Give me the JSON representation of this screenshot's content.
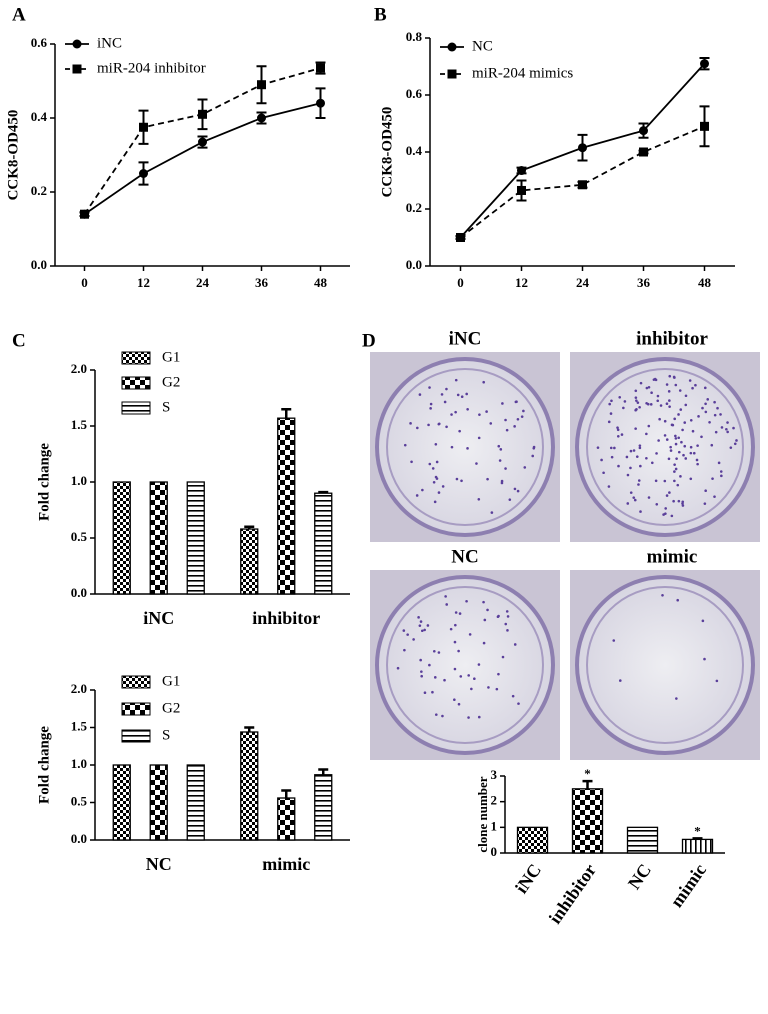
{
  "chart_data": [
    {
      "type": "line",
      "panel_label": "A",
      "y_label": "CCK8-OD450",
      "x": [
        0,
        12,
        24,
        36,
        48
      ],
      "xlim": [
        -6,
        54
      ],
      "xticks": [
        0,
        12,
        24,
        36,
        48
      ],
      "ylim": [
        0,
        0.6
      ],
      "yticks": [
        {
          "value": 0,
          "label": "0.0"
        },
        0.2,
        0.4,
        0.6
      ],
      "legend": "upper left",
      "series": [
        {
          "name": "iNC",
          "color": "#000000",
          "marker": "circle",
          "dashed": false,
          "values": [
            0.14,
            0.25,
            0.335,
            0.4,
            0.44
          ],
          "errors": [
            0.005,
            0.03,
            0.015,
            0.015,
            0.04
          ]
        },
        {
          "name": "miR-204 inhibitor",
          "color": "#000000",
          "marker": "square",
          "dashed": true,
          "values": [
            0.14,
            0.375,
            0.41,
            0.49,
            0.535
          ],
          "errors": [
            0.005,
            0.045,
            0.04,
            0.05,
            0.015
          ]
        }
      ]
    },
    {
      "type": "line",
      "panel_label": "B",
      "y_label": "CCK8-OD450",
      "x": [
        0,
        12,
        24,
        36,
        48
      ],
      "xlim": [
        -6,
        54
      ],
      "xticks": [
        0,
        12,
        24,
        36,
        48
      ],
      "ylim": [
        0,
        0.8
      ],
      "yticks": [
        {
          "value": 0,
          "label": "0.0"
        },
        0.2,
        0.4,
        0.6,
        0.8
      ],
      "legend": "upper left",
      "series": [
        {
          "name": "NC",
          "color": "#000000",
          "marker": "circle",
          "dashed": false,
          "values": [
            0.1,
            0.335,
            0.415,
            0.475,
            0.71
          ],
          "errors": [
            0.005,
            0.01,
            0.045,
            0.025,
            0.02
          ]
        },
        {
          "name": "miR-204 mimics",
          "color": "#000000",
          "marker": "square",
          "dashed": true,
          "values": [
            0.1,
            0.265,
            0.285,
            0.4,
            0.49
          ],
          "errors": [
            0.005,
            0.035,
            0.01,
            0.005,
            0.07
          ]
        }
      ]
    },
    {
      "type": "bar",
      "panel_label": "C",
      "y_label": "Fold change",
      "categories": [
        "iNC",
        "inhibitor"
      ],
      "ylim": [
        0,
        2.0
      ],
      "yticks": [
        {
          "value": 0,
          "label": "0.0"
        },
        0.5,
        {
          "value": 1,
          "label": "1.0"
        },
        1.5,
        {
          "value": 2,
          "label": "2.0"
        }
      ],
      "legend": "upper left",
      "series": [
        {
          "name": "G1",
          "pattern": "checker-small",
          "values": [
            1,
            0.58
          ],
          "errors": [
            0,
            0.02
          ]
        },
        {
          "name": "G2",
          "pattern": "checker-large",
          "values": [
            1,
            1.57
          ],
          "errors": [
            0,
            0.08
          ]
        },
        {
          "name": "S",
          "pattern": "hstripes",
          "values": [
            1,
            0.9
          ],
          "errors": [
            0,
            0.01
          ]
        }
      ]
    },
    {
      "type": "bar",
      "y_label": "Fold change",
      "categories": [
        "NC",
        "mimic"
      ],
      "ylim": [
        0,
        2.0
      ],
      "yticks": [
        {
          "value": 0,
          "label": "0.0"
        },
        0.5,
        {
          "value": 1,
          "label": "1.0"
        },
        1.5,
        {
          "value": 2,
          "label": "2.0"
        }
      ],
      "legend": "upper left",
      "series": [
        {
          "name": "G1",
          "pattern": "checker-small",
          "values": [
            1,
            1.44
          ],
          "errors": [
            0,
            0.06
          ]
        },
        {
          "name": "G2",
          "pattern": "checker-large",
          "values": [
            1,
            0.56
          ],
          "errors": [
            0,
            0.1
          ]
        },
        {
          "name": "S",
          "pattern": "hstripes",
          "values": [
            1,
            0.87
          ],
          "errors": [
            0,
            0.07
          ]
        }
      ]
    },
    {
      "type": "bar",
      "panel_label": "D",
      "y_label": "clone number",
      "categories": [
        "iNC",
        "inhibitor",
        "NC",
        "mimic"
      ],
      "ylim": [
        0,
        3
      ],
      "yticks": [
        0,
        1,
        2,
        3
      ],
      "photo_labels": [
        "iNC",
        "inhibitor",
        "NC",
        "mimic"
      ],
      "series": [
        {
          "patterns": [
            "checker-small",
            "checker-large",
            "hstripes",
            "vstripes"
          ],
          "values": [
            1,
            2.5,
            1,
            0.53
          ],
          "errors": [
            0,
            0.3,
            0,
            0.04
          ]
        }
      ],
      "annotations": [
        {
          "text": "*",
          "category": "inhibitor"
        },
        {
          "text": "*",
          "category": "mimic"
        }
      ]
    }
  ]
}
